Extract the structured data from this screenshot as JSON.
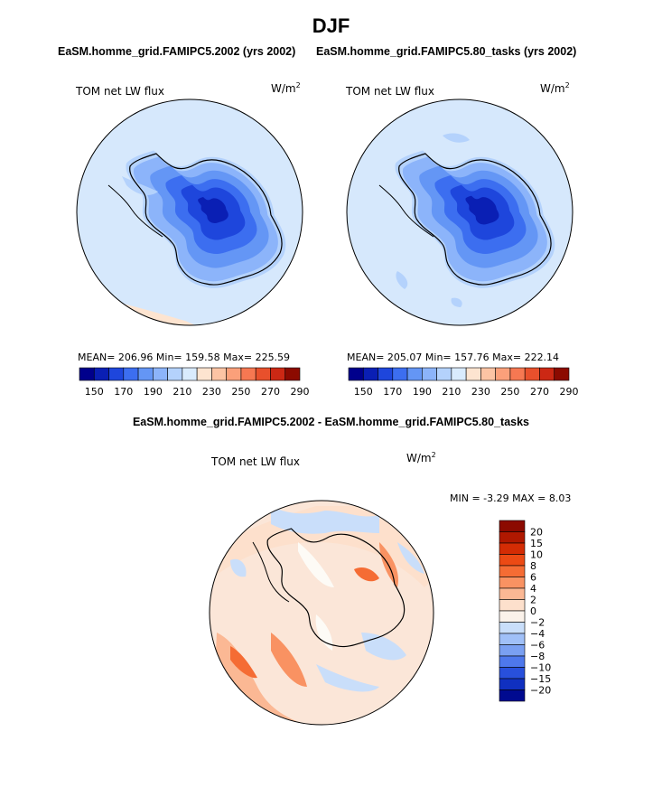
{
  "title": "DJF",
  "panel1": {
    "case_title": "EaSM.homme_grid.FAMIPC5.2002 (yrs 2002)",
    "variable": "TOM net LW flux",
    "units_base": "W/m",
    "units_exp": "2",
    "stats": "MEAN= 206.96   Min= 159.58   Max= 225.59"
  },
  "panel2": {
    "case_title": "EaSM.homme_grid.FAMIPC5.80_tasks (yrs 2002)",
    "variable": "TOM net LW flux",
    "units_base": "W/m",
    "units_exp": "2",
    "stats": "MEAN= 205.07   Min= 157.76   Max= 222.14"
  },
  "panel3": {
    "case_title": "EaSM.homme_grid.FAMIPC5.2002 - EaSM.homme_grid.FAMIPC5.80_tasks",
    "variable": "TOM net LW flux",
    "units_base": "W/m",
    "units_exp": "2",
    "stats": "MIN =   -3.29  MAX =    8.03"
  },
  "chart_data": [
    {
      "type": "heatmap",
      "projection": "south polar stereographic",
      "title": "EaSM.homme_grid.FAMIPC5.2002 (yrs 2002)",
      "field": "TOM net LW flux",
      "units": "W/m^2",
      "mean": 206.96,
      "min": 159.58,
      "max": 225.59,
      "colorbar_labels": [
        "150",
        "170",
        "190",
        "210",
        "230",
        "250",
        "270",
        "290"
      ],
      "colorbar_colors": [
        "#00008c",
        "#0a1fb4",
        "#1e46dc",
        "#3c6ef0",
        "#6496f5",
        "#8cb4fa",
        "#b4d2fc",
        "#d9ebfd",
        "#fde4d0",
        "#fcc4a4",
        "#fba07a",
        "#f67852",
        "#e8502c",
        "#cc2814",
        "#8c0a00"
      ]
    },
    {
      "type": "heatmap",
      "projection": "south polar stereographic",
      "title": "EaSM.homme_grid.FAMIPC5.80_tasks (yrs 2002)",
      "field": "TOM net LW flux",
      "units": "W/m^2",
      "mean": 205.07,
      "min": 157.76,
      "max": 222.14,
      "colorbar_labels": [
        "150",
        "170",
        "190",
        "210",
        "230",
        "250",
        "270",
        "290"
      ],
      "colorbar_colors": [
        "#00008c",
        "#0a1fb4",
        "#1e46dc",
        "#3c6ef0",
        "#6496f5",
        "#8cb4fa",
        "#b4d2fc",
        "#d9ebfd",
        "#fde4d0",
        "#fcc4a4",
        "#fba07a",
        "#f67852",
        "#e8502c",
        "#cc2814",
        "#8c0a00"
      ]
    },
    {
      "type": "heatmap",
      "projection": "south polar stereographic",
      "title": "EaSM.homme_grid.FAMIPC5.2002 - EaSM.homme_grid.FAMIPC5.80_tasks",
      "field": "TOM net LW flux",
      "units": "W/m^2",
      "min": -3.29,
      "max": 8.03,
      "colorbar_labels": [
        "20",
        "15",
        "10",
        "8",
        "6",
        "4",
        "2",
        "0",
        "−2",
        "−4",
        "−6",
        "−8",
        "−10",
        "−15",
        "−20"
      ],
      "colorbar_colors": [
        "#8c0a00",
        "#b01800",
        "#d42c04",
        "#ec4a14",
        "#f56c34",
        "#f99262",
        "#fbb894",
        "#fde0cc",
        "#fbf2ea",
        "#c9defa",
        "#a0c0f8",
        "#7aa0f2",
        "#4e78ec",
        "#2850dc",
        "#1030c0",
        "#000a90"
      ]
    }
  ]
}
